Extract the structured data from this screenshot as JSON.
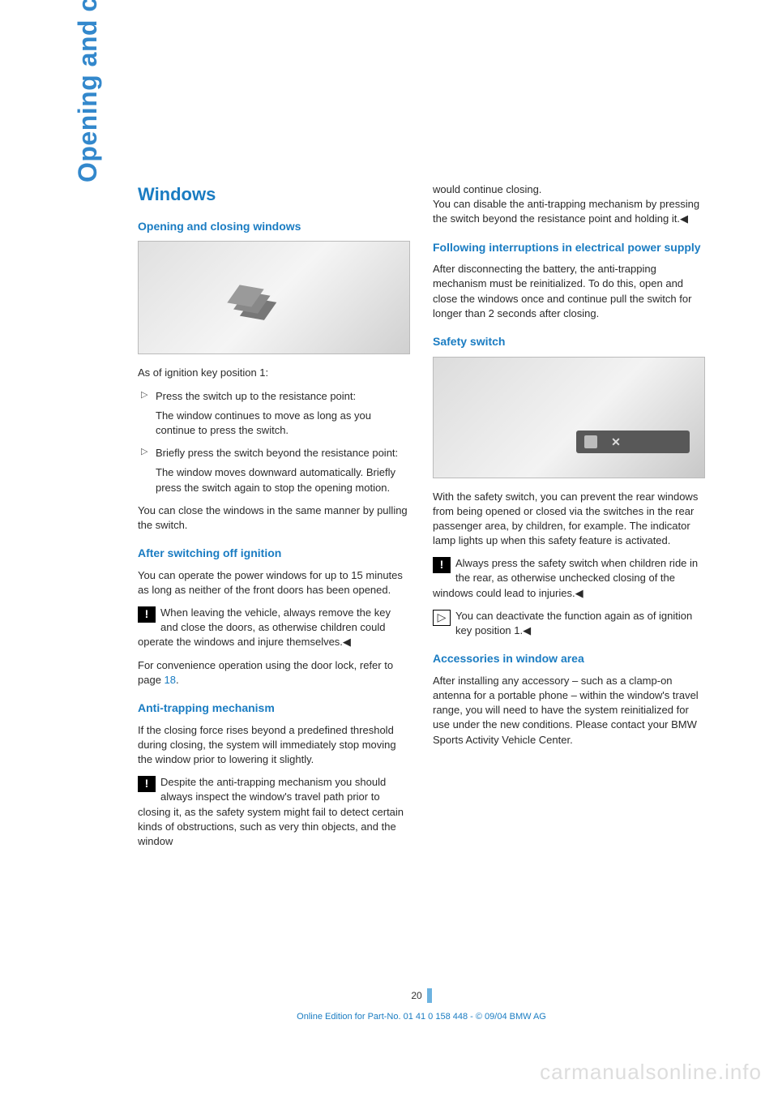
{
  "sidetab": "Opening and closing",
  "pageNumber": "20",
  "footer": "Online Edition for Part-No. 01 41 0 158 448 - © 09/04 BMW AG",
  "watermark": "carmanualsonline.info",
  "col1": {
    "h1": "Windows",
    "h2a": "Opening and closing windows",
    "p1": "As of ignition key position 1:",
    "li1": "Press the switch up to the resistance point:",
    "li1sub": "The window continues to move as long as you continue to press the switch.",
    "li2": "Briefly press the switch beyond the resistance point:",
    "li2sub": "The window moves downward automatically. Briefly press the switch again to stop the opening motion.",
    "p2": "You can close the windows in the same manner by pulling the switch.",
    "h2b": "After switching off ignition",
    "p3": "You can operate the power windows for up to 15 minutes as long as neither of the front doors has been opened.",
    "warn1": "When leaving the vehicle, always remove the key and close the doors, as otherwise children could operate the windows and injure themselves.◀",
    "p4a": "For convenience operation using the door lock, refer to page ",
    "p4link": "18",
    "p4b": ".",
    "h2c": "Anti-trapping mechanism",
    "p5": "If the closing force rises beyond a predefined threshold during closing, the system will immediately stop moving the window prior to lowering it slightly.",
    "warn2": "Despite the anti-trapping mechanism you should always inspect the window's travel path prior to closing it, as the safety system might fail to detect certain kinds of obstructions, such as very thin objects, and the window"
  },
  "col2": {
    "p1": "would continue closing.",
    "p1b": "You can disable the anti-trapping mechanism by pressing the switch beyond the resistance point and holding it.◀",
    "h2a": "Following interruptions in electrical power supply",
    "p2": "After disconnecting the battery, the anti-trapping mechanism must be reinitialized. To do this, open and close the windows once and continue pull the switch for longer than 2 seconds after closing.",
    "h2b": "Safety switch",
    "p3": "With the safety switch, you can prevent the rear windows from being opened or closed via the switches in the rear passenger area, by children, for example. The indicator lamp lights up when this safety feature is activated.",
    "warn1": "Always press the safety switch when children ride in the rear, as otherwise unchecked closing of the windows could lead to injuries.◀",
    "tip1": "You can deactivate the function again as of ignition key position 1.◀",
    "h2c": "Accessories in window area",
    "p4": "After installing any accessory – such as a clamp-on antenna for a portable phone – within the window's travel range, you will need to have the system reinitialized for use under the new conditions. Please contact your BMW Sports Activity Vehicle Center."
  }
}
